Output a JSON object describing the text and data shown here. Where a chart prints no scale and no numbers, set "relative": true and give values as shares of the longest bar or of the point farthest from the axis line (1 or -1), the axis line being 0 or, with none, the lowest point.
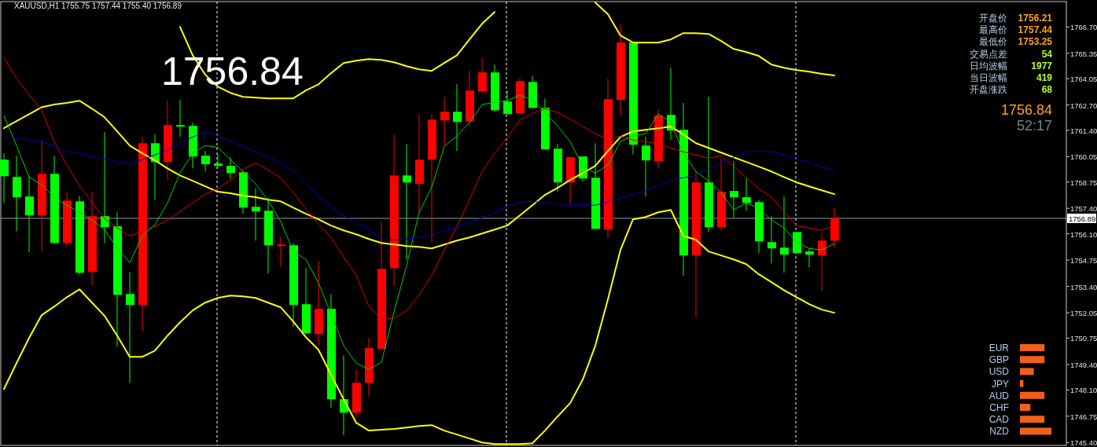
{
  "chart_data": [
    {
      "type": "candlestick",
      "title": "XAUUSD,H1  1755.75 1757.44 1755.40 1756.89",
      "tick_labels": "y",
      "annotations": [
        "1756.84",
        "开盘价",
        "1756.21",
        "最高价",
        "1757.44",
        "最低价",
        "1753.25",
        "交易点差",
        "54",
        "日均波幅",
        "1977",
        "当日波幅",
        "419",
        "开盘涨跌",
        "68",
        "1756.84",
        "52:17"
      ],
      "categories": [
        null,
        null,
        null,
        null,
        null,
        null,
        null,
        null,
        null,
        null,
        null,
        null,
        null,
        null,
        null,
        null,
        null,
        null,
        null,
        null,
        null,
        null,
        null,
        null,
        null,
        null,
        null,
        null,
        null,
        null,
        null,
        null,
        null,
        null,
        null,
        null,
        null,
        null,
        null,
        null,
        null,
        null,
        null,
        null,
        null,
        null,
        null,
        null,
        null,
        null,
        null,
        null,
        null,
        null,
        null,
        null,
        null,
        null,
        null,
        null,
        null,
        null,
        null,
        null,
        null,
        null,
        null
      ],
      "ohlc": [
        [
          1759.9,
          1760.22,
          1757.68,
          1759.05
        ],
        [
          1759.01,
          1760.1,
          1756.23,
          1757.97
        ],
        [
          1758.01,
          1759.09,
          1755.15,
          1757.04
        ],
        [
          1757.04,
          1760.9,
          1755.19,
          1759.17
        ],
        [
          1759.17,
          1760.1,
          1755.59,
          1755.63
        ],
        [
          1755.63,
          1758.21,
          1755.43,
          1757.8
        ],
        [
          1757.76,
          1758.05,
          1754.02,
          1754.1
        ],
        [
          1754.14,
          1758.25,
          1753.46,
          1757.0
        ],
        [
          1757.0,
          1761.31,
          1755.63,
          1756.44
        ],
        [
          1756.48,
          1757.2,
          1750.32,
          1752.97
        ],
        [
          1753.01,
          1754.14,
          1748.46,
          1752.45
        ],
        [
          1752.45,
          1761.06,
          1751.12,
          1760.74
        ],
        [
          1760.74,
          1761.19,
          1757.84,
          1759.78
        ],
        [
          1759.78,
          1762.92,
          1758.85,
          1761.67
        ],
        [
          1761.67,
          1762.96,
          1761.06,
          1761.59
        ],
        [
          1761.63,
          1761.79,
          1759.45,
          1760.06
        ],
        [
          1760.1,
          1760.34,
          1759.29,
          1759.66
        ],
        [
          1759.7,
          1760.18,
          1759.45,
          1759.58
        ],
        [
          1759.58,
          1760.02,
          1758.93,
          1759.21
        ],
        [
          1759.25,
          1759.33,
          1757.12,
          1757.44
        ],
        [
          1757.48,
          1758.41,
          1755.75,
          1757.24
        ],
        [
          1757.28,
          1757.97,
          1754.06,
          1755.51
        ],
        [
          1755.47,
          1755.95,
          1754.42,
          1755.55
        ],
        [
          1755.51,
          1755.63,
          1751.32,
          1752.45
        ],
        [
          1752.49,
          1754.34,
          1750.96,
          1751.0
        ],
        [
          1750.96,
          1754.7,
          1750.4,
          1752.25
        ],
        [
          1752.25,
          1753.01,
          1747.18,
          1747.62
        ],
        [
          1747.62,
          1749.87,
          1745.77,
          1746.93
        ],
        [
          1746.93,
          1749.15,
          1746.65,
          1748.46
        ],
        [
          1748.46,
          1750.76,
          1747.74,
          1750.24
        ],
        [
          1750.2,
          1756.76,
          1750.2,
          1754.3
        ],
        [
          1754.34,
          1761.19,
          1753.42,
          1759.09
        ],
        [
          1759.09,
          1760.7,
          1754.78,
          1758.73
        ],
        [
          1758.65,
          1762.23,
          1757.24,
          1759.9
        ],
        [
          1759.9,
          1762.23,
          1755.67,
          1761.95
        ],
        [
          1761.91,
          1763.12,
          1760.58,
          1762.35
        ],
        [
          1762.35,
          1763.76,
          1760.34,
          1761.83
        ],
        [
          1761.87,
          1764.45,
          1761.63,
          1763.44
        ],
        [
          1763.4,
          1765.09,
          1763.28,
          1764.37
        ],
        [
          1764.37,
          1764.77,
          1762.35,
          1762.43
        ],
        [
          1762.88,
          1763.44,
          1762.23,
          1762.23
        ],
        [
          1762.27,
          1764.08,
          1762.27,
          1763.92
        ],
        [
          1763.88,
          1764.17,
          1762.55,
          1762.55
        ],
        [
          1762.55,
          1763.04,
          1760.42,
          1760.42
        ],
        [
          1760.46,
          1760.7,
          1758.25,
          1758.73
        ],
        [
          1758.73,
          1760.06,
          1757.6,
          1760.02
        ],
        [
          1760.06,
          1760.06,
          1758.77,
          1758.93
        ],
        [
          1758.97,
          1760.74,
          1756.35,
          1756.35
        ],
        [
          1756.31,
          1764.04,
          1755.87,
          1763.0
        ],
        [
          1762.96,
          1766.82,
          1762.15,
          1765.9
        ],
        [
          1765.9,
          1765.9,
          1760.18,
          1760.66
        ],
        [
          1760.62,
          1761.06,
          1758.01,
          1759.86
        ],
        [
          1759.82,
          1762.47,
          1759.45,
          1762.15
        ],
        [
          1762.19,
          1764.61,
          1760.9,
          1761.39
        ],
        [
          1761.43,
          1762.8,
          1753.94,
          1754.99
        ],
        [
          1754.99,
          1759.33,
          1751.81,
          1758.73
        ],
        [
          1758.73,
          1763.12,
          1756.19,
          1756.44
        ],
        [
          1756.44,
          1759.94,
          1756.27,
          1758.25
        ],
        [
          1758.29,
          1759.82,
          1756.92,
          1757.97
        ],
        [
          1757.97,
          1758.93,
          1757.28,
          1757.68
        ],
        [
          1757.72,
          1757.84,
          1755.11,
          1755.71
        ],
        [
          1755.67,
          1757.0,
          1754.58,
          1755.35
        ],
        [
          1755.39,
          1758.01,
          1754.1,
          1755.03
        ],
        [
          1756.19,
          1756.19,
          1755.11,
          1755.11
        ],
        [
          1755.19,
          1755.35,
          1754.38,
          1755.03
        ],
        [
          1754.99,
          1756.15,
          1753.17,
          1755.75
        ],
        [
          1755.75,
          1757.44,
          1755.4,
          1756.89
        ]
      ],
      "colors": [
        "#00ff00",
        "#00ff00",
        "#00ff00",
        "#ff0000",
        "#00ff00",
        "#ff0000",
        "#00ff00",
        "#ff0000",
        "#00ff00",
        "#00ff00",
        "#00ff00",
        "#ff0000",
        "#00ff00",
        "#ff0000",
        "#00ff00",
        "#00ff00",
        "#00ff00",
        "#00ff00",
        "#00ff00",
        "#00ff00",
        "#00ff00",
        "#00ff00",
        "#ff0000",
        "#00ff00",
        "#00ff00",
        "#ff0000",
        "#00ff00",
        "#00ff00",
        "#ff0000",
        "#ff0000",
        "#ff0000",
        "#ff0000",
        "#00ff00",
        "#ff0000",
        "#ff0000",
        "#ff0000",
        "#00ff00",
        "#ff0000",
        "#ff0000",
        "#00ff00",
        "#00ff00",
        "#ff0000",
        "#00ff00",
        "#00ff00",
        "#00ff00",
        "#ff0000",
        "#00ff00",
        "#00ff00",
        "#ff0000",
        "#ff0000",
        "#00ff00",
        "#00ff00",
        "#ff0000",
        "#00ff00",
        "#00ff00",
        "#ff0000",
        "#00ff00",
        "#ff0000",
        "#00ff00",
        "#00ff00",
        "#00ff00",
        "#00ff00",
        "#00ff00",
        "#00ff00",
        "#00ff00",
        "#ff0000",
        "#ff0000"
      ],
      "series": [
        {
          "type": "line",
          "color": "#ffff00",
          "values": [
            null,
            null,
            null,
            null,
            null,
            null,
            null,
            null,
            null,
            null,
            null,
            null,
            null,
            null,
            1766.7,
            1765.25,
            1764.25,
            1763.64,
            1763.32,
            1763.12,
            1763.08,
            1763.04,
            1763.04,
            1763.04,
            1763.44,
            1763.76,
            1764.33,
            1764.85,
            1764.97,
            1765.05,
            1765.01,
            1764.89,
            1764.69,
            1764.53,
            1764.45,
            1764.85,
            1765.25,
            1766.06,
            1766.86,
            1767.47,
            null,
            null,
            null,
            null,
            null,
            null,
            null,
            1767.95,
            1767.35,
            1766.26,
            1765.9,
            1765.9,
            1765.9,
            1766.06,
            1766.38,
            1766.38,
            1766.34,
            1765.98,
            1765.57,
            1765.41,
            1765.21,
            1764.77,
            1764.61,
            1764.49,
            1764.41,
            1764.29,
            1764.21
          ]
        },
        {
          "type": "line",
          "color": "#ffff00",
          "values": [
            1761.51,
            1761.87,
            1762.23,
            1762.59,
            1762.72,
            1762.8,
            1762.92,
            1762.51,
            1762.07,
            1761.35,
            1760.62,
            1760.22,
            1759.86,
            1759.45,
            1759.09,
            1758.81,
            1758.53,
            1758.25,
            1758.17,
            1758.05,
            1757.97,
            1757.84,
            1757.76,
            1757.44,
            1757.12,
            1756.84,
            1756.52,
            1756.27,
            1756.07,
            1755.83,
            1755.63,
            1755.55,
            1755.47,
            1755.43,
            1755.35,
            1755.55,
            1755.75,
            1755.91,
            1756.11,
            1756.31,
            1756.52,
            1757.04,
            1757.56,
            1758.09,
            1758.45,
            1758.85,
            1759.21,
            1759.58,
            1760.34,
            1761.06,
            1761.35,
            1761.43,
            1761.51,
            1761.59,
            1761.19,
            1760.74,
            1760.5,
            1760.26,
            1760.02,
            1759.78,
            1759.54,
            1759.29,
            1759.01,
            1758.73,
            1758.53,
            1758.33,
            1758.13
          ]
        },
        {
          "type": "line",
          "color": "#ffff00",
          "values": [
            1748.14,
            1749.47,
            1750.76,
            1751.93,
            1752.37,
            1752.85,
            1753.25,
            1752.57,
            1751.89,
            1750.88,
            1749.79,
            1749.79,
            1750.11,
            1750.88,
            1751.56,
            1752.17,
            1752.57,
            1752.81,
            1752.93,
            1752.89,
            1752.81,
            1752.57,
            1752.33,
            1751.6,
            1750.8,
            1750.15,
            1748.87,
            1747.62,
            1746.41,
            1746.01,
            1746.05,
            1746.09,
            1746.17,
            1746.25,
            1746.29,
            1746.01,
            1745.81,
            1745.61,
            1745.4,
            1745.32,
            1745.32,
            1745.32,
            1745.36,
            1746.01,
            1746.73,
            1747.42,
            1748.62,
            1750.36,
            1752.73,
            1755.27,
            1756.84,
            1756.96,
            1757.2,
            1757.32,
            1755.99,
            1755.79,
            1755.19,
            1754.99,
            1754.78,
            1754.54,
            1754.02,
            1753.62,
            1753.21,
            1752.85,
            1752.49,
            1752.21,
            1752.05
          ]
        },
        {
          "type": "line",
          "color": "#e00000",
          "values": [
            1765.13,
            1764.04,
            1763.24,
            1762.43,
            1760.82,
            1759.62,
            1758.57,
            1757.72,
            1756.88,
            1756.4,
            1755.99,
            1756.23,
            1756.48,
            1756.8,
            1757.24,
            1757.68,
            1758.13,
            1758.41,
            1758.85,
            1759.41,
            1759.74,
            1759.37,
            1758.97,
            1758.21,
            1757.36,
            1756.6,
            1755.91,
            1754.91,
            1753.98,
            1752.37,
            1751.72,
            1751.77,
            1752.17,
            1752.97,
            1753.98,
            1755.27,
            1756.48,
            1757.84,
            1759.29,
            1760.22,
            1761.02,
            1761.91,
            1762.27,
            1762.51,
            1762.31,
            1761.99,
            1761.59,
            1761.23,
            1760.94,
            1761.11,
            1760.9,
            1760.82,
            1760.7,
            1760.5,
            1760.3,
            1760.14,
            1759.98,
            1760.1,
            1759.54,
            1758.97,
            1758.41,
            1757.97,
            1757.24,
            1756.52,
            1756.4,
            1756.27,
            1756.52
          ]
        },
        {
          "type": "line",
          "color": "#00d000",
          "values": [
            1762.15,
            1760.62,
            1759.01,
            1758.61,
            1757.97,
            1757.56,
            1757.2,
            1756.8,
            1756.31,
            1755.35,
            1754.62,
            1755.99,
            1756.56,
            1757.68,
            1759.21,
            1760.22,
            1760.62,
            1760.54,
            1759.9,
            1759.29,
            1758.65,
            1757.8,
            1756.72,
            1755.19,
            1754.78,
            1753.58,
            1751.97,
            1750.36,
            1749.47,
            1749.15,
            1749.51,
            1752.09,
            1754.46,
            1757.2,
            1758.49,
            1760.58,
            1761.11,
            1761.79,
            1762.72,
            1762.84,
            1762.92,
            1763.2,
            1762.96,
            1762.31,
            1761.63,
            1760.82,
            1759.58,
            1759.21,
            1759.62,
            1760.82,
            1761.11,
            1761.23,
            1762.23,
            1761.83,
            1760.22,
            1759.29,
            1758.81,
            1758.21,
            1757.32,
            1757.68,
            1757.4,
            1756.8,
            1756.4,
            1755.67,
            1755.35,
            1755.27,
            1755.59
          ]
        },
        {
          "type": "line",
          "color": "#0000c8",
          "values": [
            1761.06,
            1760.98,
            1760.9,
            1760.82,
            1760.58,
            1760.34,
            1760.18,
            1760.06,
            1759.94,
            1759.78,
            1759.66,
            1759.9,
            1760.14,
            1760.38,
            1760.74,
            1761.06,
            1761.31,
            1761.15,
            1760.86,
            1760.58,
            1760.3,
            1760.02,
            1759.74,
            1759.33,
            1758.69,
            1758.01,
            1757.52,
            1757.04,
            1756.64,
            1756.35,
            1755.83,
            1755.79,
            1755.83,
            1755.91,
            1756.03,
            1756.27,
            1756.44,
            1756.68,
            1756.92,
            1757.16,
            1757.52,
            1757.72,
            1757.76,
            1757.68,
            1757.64,
            1757.6,
            1757.6,
            1757.56,
            1757.72,
            1757.92,
            1758.13,
            1758.29,
            1758.57,
            1758.85,
            1758.97,
            1759.09,
            1759.45,
            1759.74,
            1760.02,
            1760.3,
            1760.34,
            1760.3,
            1760.14,
            1759.94,
            1759.74,
            1759.54,
            1759.33
          ]
        }
      ],
      "ylim": [
        1745.25,
        1768.0
      ],
      "yticks": [
        {
          "value": 1766.7,
          "label": "1766.70"
        },
        {
          "value": 1765.35,
          "label": "1765.35"
        },
        {
          "value": 1764.05,
          "label": "1764.05"
        },
        {
          "value": 1762.7,
          "label": "1762.70"
        },
        {
          "value": 1761.4,
          "label": "1761.40"
        },
        {
          "value": 1760.05,
          "label": "1760.05"
        },
        {
          "value": 1758.75,
          "label": "1758.75"
        },
        {
          "value": 1757.4,
          "label": "1757.40"
        },
        {
          "value": 1756.1,
          "label": "1756.10"
        },
        {
          "value": 1754.75,
          "label": "1754.75"
        },
        {
          "value": 1753.4,
          "label": "1753.40"
        },
        {
          "value": 1752.05,
          "label": "1752.05"
        },
        {
          "value": 1750.75,
          "label": "1750.75"
        },
        {
          "value": 1749.4,
          "label": "1749.40"
        },
        {
          "value": 1748.1,
          "label": "1748.10"
        },
        {
          "value": 1746.75,
          "label": "1746.75"
        },
        {
          "value": 1745.4,
          "label": "1745.40"
        }
      ],
      "grid": "x",
      "ref_lines": [
        {
          "axis": "y",
          "value": 1756.89,
          "label": "1756.89",
          "color": "#9098a0",
          "line_style": "solid"
        }
      ]
    },
    {
      "type": "bar",
      "orientation": "horizontal",
      "relative": true,
      "color": "#f06018",
      "categories": [
        "EUR",
        "GBP",
        "USD",
        "JPY",
        "AUD",
        "CHF",
        "CAD",
        "NZD"
      ],
      "values": [
        0.78,
        0.78,
        0.44,
        0.11,
        0.78,
        0.33,
        0.78,
        1
      ]
    }
  ]
}
